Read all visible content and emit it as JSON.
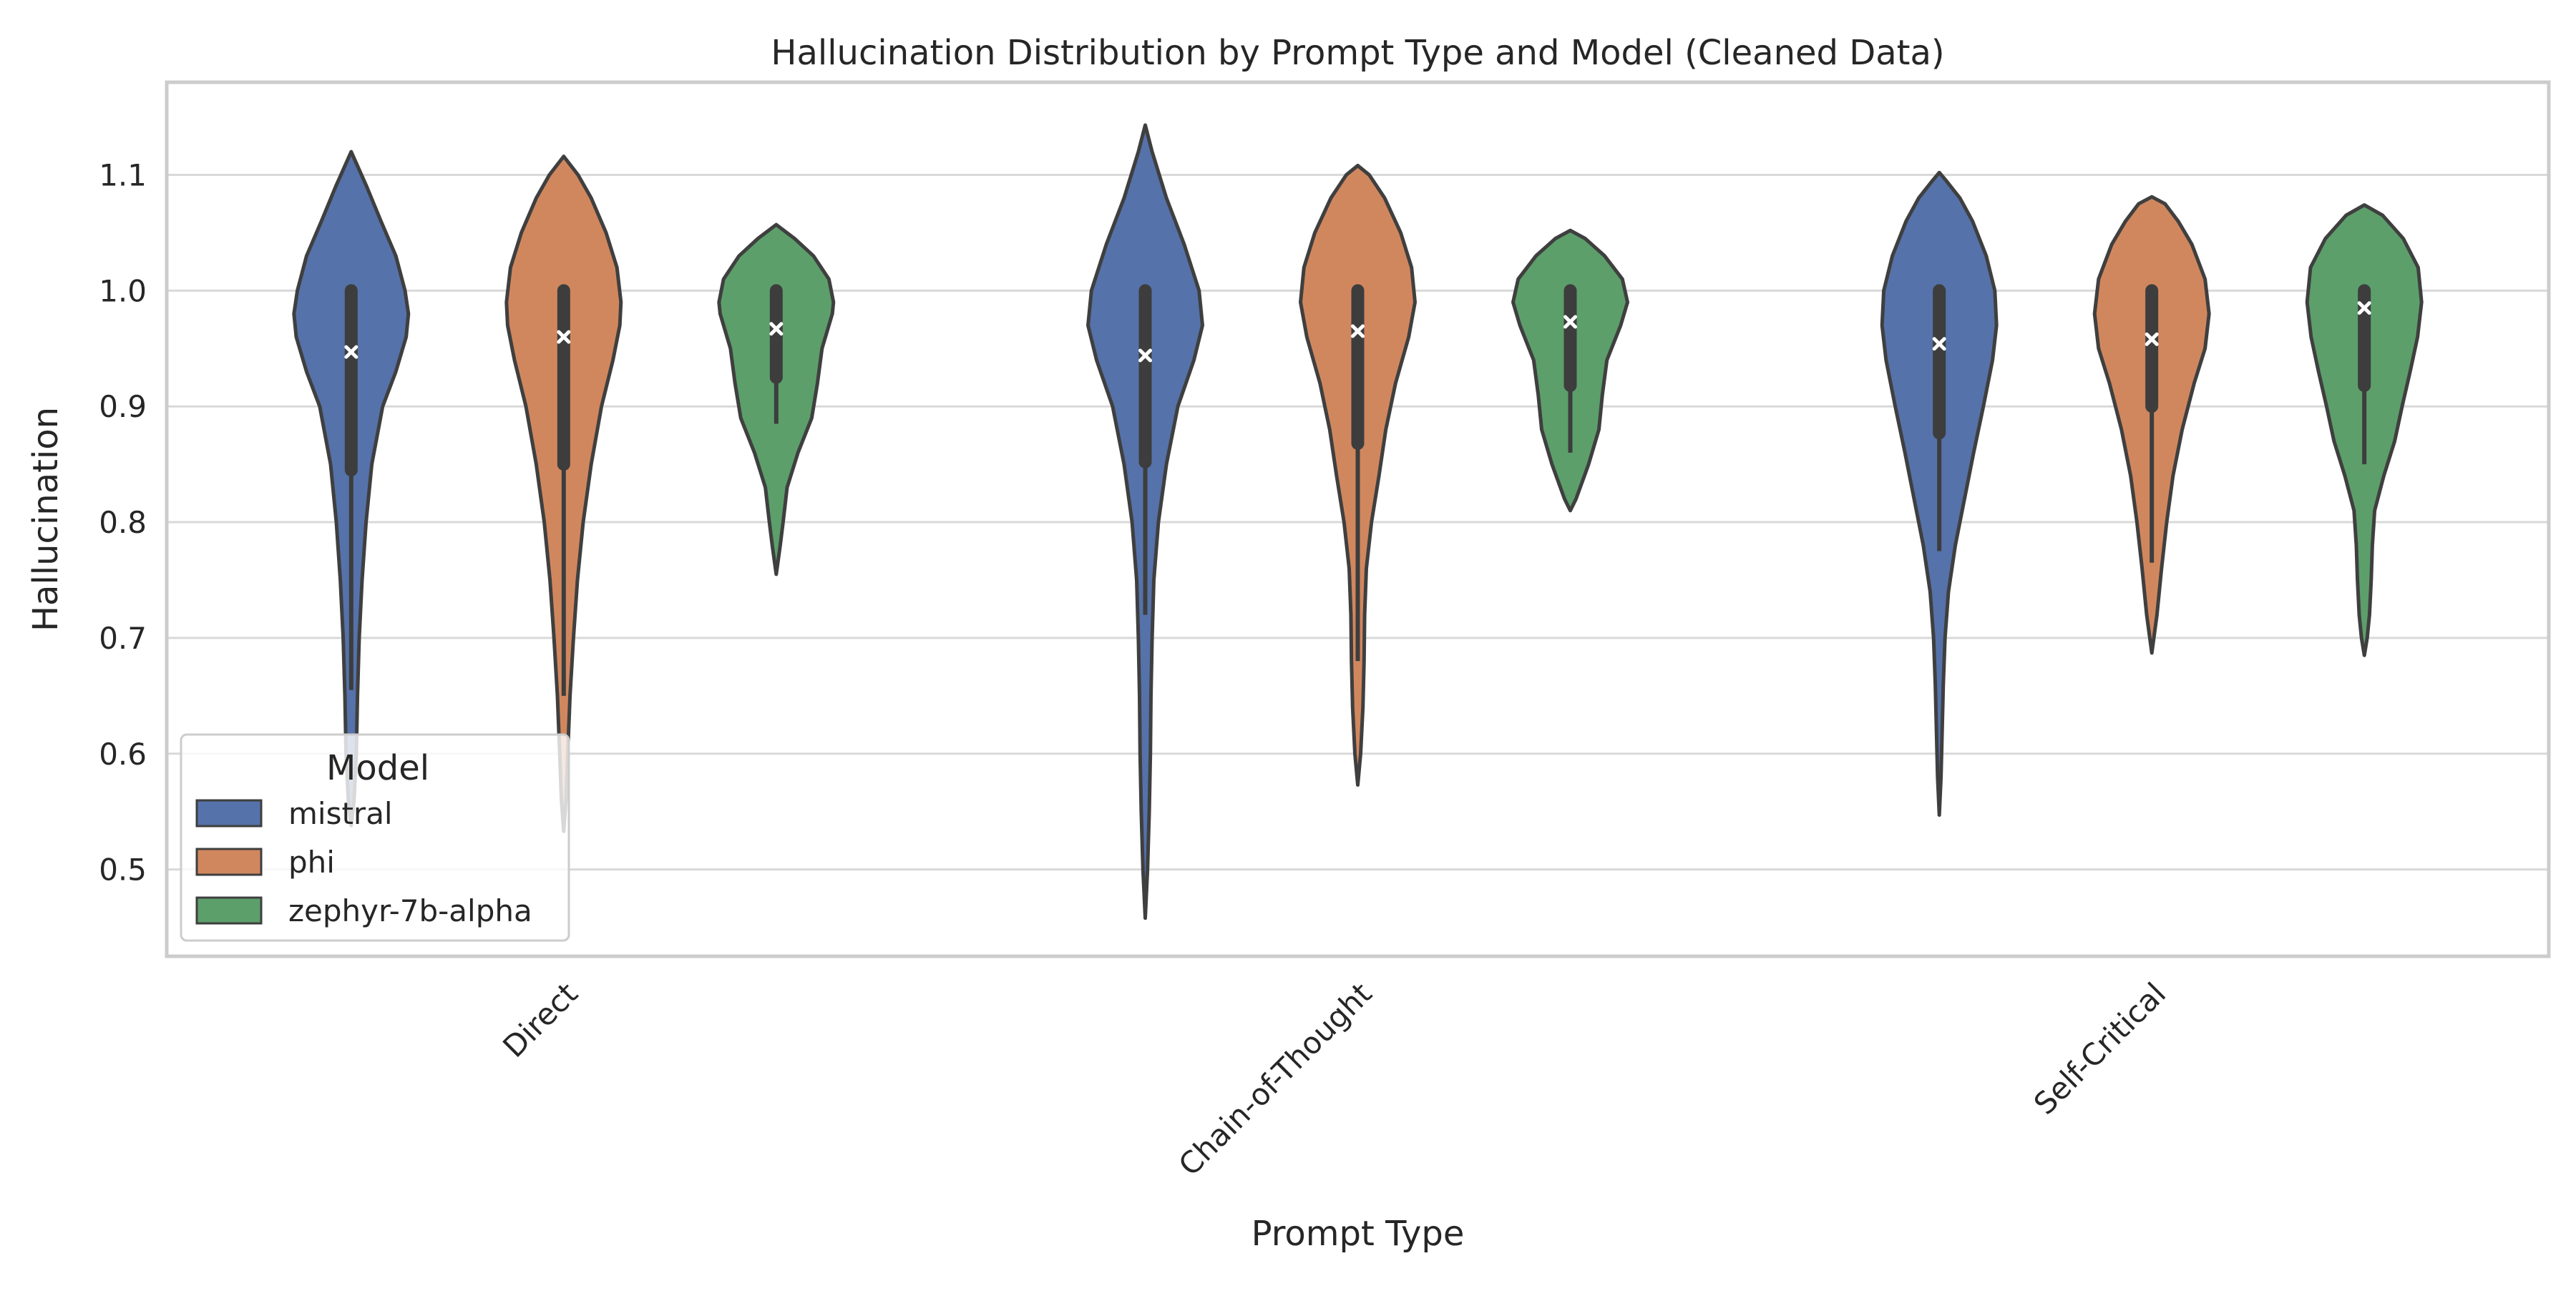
{
  "chart_data": {
    "type": "violin",
    "title": "Hallucination Distribution by Prompt Type and Model (Cleaned Data)",
    "xlabel": "Prompt Type",
    "ylabel": "Hallucination",
    "categories": [
      "Direct",
      "Chain-of-Thought",
      "Self-Critical"
    ],
    "ylim": [
      0.425,
      1.18
    ],
    "yticks": [
      0.5,
      0.6,
      0.7,
      0.8,
      0.9,
      1.0,
      1.1
    ],
    "ytick_labels": [
      "0.5",
      "0.6",
      "0.7",
      "0.8",
      "0.9",
      "1.0",
      "1.1"
    ],
    "grid": "horizontal",
    "legend": {
      "title": "Model",
      "placement": "lower-left",
      "entries": [
        "mistral",
        "phi",
        "zephyr-7b-alpha"
      ]
    },
    "colors": {
      "mistral": "#5572aa",
      "phi": "#d1875e",
      "zephyr-7b-alpha": "#5c9f6b",
      "outline": "#3f3f3f",
      "box": "#3d3d3d",
      "median_marker": "#ffffff",
      "grid": "#d9d9d9",
      "frame": "#cccccc"
    },
    "series": [
      {
        "name": "mistral",
        "violins": [
          {
            "category": "Direct",
            "ymin": 0.538,
            "ymax": 1.12,
            "median": 0.947,
            "q1": 0.845,
            "q3": 1.0,
            "whisker_low": 0.655,
            "whisker_high": 1.0,
            "profile": [
              [
                0.538,
                0.0
              ],
              [
                0.56,
                0.05
              ],
              [
                0.6,
                0.09
              ],
              [
                0.65,
                0.11
              ],
              [
                0.7,
                0.14
              ],
              [
                0.75,
                0.19
              ],
              [
                0.8,
                0.26
              ],
              [
                0.85,
                0.36
              ],
              [
                0.9,
                0.55
              ],
              [
                0.93,
                0.78
              ],
              [
                0.96,
                0.96
              ],
              [
                0.98,
                1.0
              ],
              [
                1.0,
                0.94
              ],
              [
                1.03,
                0.78
              ],
              [
                1.06,
                0.52
              ],
              [
                1.09,
                0.27
              ],
              [
                1.11,
                0.09
              ],
              [
                1.12,
                0.0
              ]
            ]
          },
          {
            "category": "Chain-of-Thought",
            "ymin": 0.458,
            "ymax": 1.143,
            "median": 0.944,
            "q1": 0.852,
            "q3": 1.0,
            "whisker_low": 0.72,
            "whisker_high": 1.0,
            "profile": [
              [
                0.458,
                0.0
              ],
              [
                0.5,
                0.04
              ],
              [
                0.55,
                0.07
              ],
              [
                0.6,
                0.09
              ],
              [
                0.65,
                0.1
              ],
              [
                0.7,
                0.12
              ],
              [
                0.75,
                0.15
              ],
              [
                0.8,
                0.23
              ],
              [
                0.85,
                0.37
              ],
              [
                0.9,
                0.57
              ],
              [
                0.94,
                0.85
              ],
              [
                0.97,
                1.0
              ],
              [
                1.0,
                0.94
              ],
              [
                1.04,
                0.68
              ],
              [
                1.08,
                0.37
              ],
              [
                1.12,
                0.12
              ],
              [
                1.143,
                0.0
              ]
            ]
          },
          {
            "category": "Self-Critical",
            "ymin": 0.547,
            "ymax": 1.102,
            "median": 0.954,
            "q1": 0.877,
            "q3": 1.0,
            "whisker_low": 0.775,
            "whisker_high": 1.0,
            "profile": [
              [
                0.547,
                0.0
              ],
              [
                0.58,
                0.03
              ],
              [
                0.62,
                0.05
              ],
              [
                0.66,
                0.07
              ],
              [
                0.7,
                0.1
              ],
              [
                0.74,
                0.16
              ],
              [
                0.78,
                0.28
              ],
              [
                0.82,
                0.44
              ],
              [
                0.86,
                0.6
              ],
              [
                0.9,
                0.77
              ],
              [
                0.94,
                0.93
              ],
              [
                0.97,
                1.0
              ],
              [
                1.0,
                0.97
              ],
              [
                1.03,
                0.82
              ],
              [
                1.06,
                0.58
              ],
              [
                1.08,
                0.36
              ],
              [
                1.095,
                0.12
              ],
              [
                1.102,
                0.0
              ]
            ]
          }
        ]
      },
      {
        "name": "phi",
        "violins": [
          {
            "category": "Direct",
            "ymin": 0.533,
            "ymax": 1.116,
            "median": 0.96,
            "q1": 0.85,
            "q3": 1.0,
            "whisker_low": 0.65,
            "whisker_high": 1.0,
            "profile": [
              [
                0.533,
                0.0
              ],
              [
                0.56,
                0.04
              ],
              [
                0.6,
                0.07
              ],
              [
                0.65,
                0.11
              ],
              [
                0.7,
                0.17
              ],
              [
                0.75,
                0.24
              ],
              [
                0.8,
                0.34
              ],
              [
                0.85,
                0.48
              ],
              [
                0.9,
                0.66
              ],
              [
                0.94,
                0.86
              ],
              [
                0.97,
                0.98
              ],
              [
                0.99,
                1.0
              ],
              [
                1.02,
                0.93
              ],
              [
                1.05,
                0.74
              ],
              [
                1.08,
                0.48
              ],
              [
                1.1,
                0.25
              ],
              [
                1.116,
                0.0
              ]
            ]
          },
          {
            "category": "Chain-of-Thought",
            "ymin": 0.573,
            "ymax": 1.108,
            "median": 0.965,
            "q1": 0.868,
            "q3": 1.0,
            "whisker_low": 0.68,
            "whisker_high": 1.0,
            "profile": [
              [
                0.573,
                0.0
              ],
              [
                0.6,
                0.05
              ],
              [
                0.64,
                0.09
              ],
              [
                0.68,
                0.11
              ],
              [
                0.72,
                0.12
              ],
              [
                0.76,
                0.15
              ],
              [
                0.8,
                0.24
              ],
              [
                0.84,
                0.37
              ],
              [
                0.88,
                0.49
              ],
              [
                0.92,
                0.66
              ],
              [
                0.96,
                0.89
              ],
              [
                0.99,
                1.0
              ],
              [
                1.02,
                0.94
              ],
              [
                1.05,
                0.75
              ],
              [
                1.08,
                0.47
              ],
              [
                1.1,
                0.2
              ],
              [
                1.108,
                0.0
              ]
            ]
          },
          {
            "category": "Self-Critical",
            "ymin": 0.687,
            "ymax": 1.081,
            "median": 0.958,
            "q1": 0.9,
            "q3": 1.0,
            "whisker_low": 0.765,
            "whisker_high": 1.0,
            "profile": [
              [
                0.687,
                0.0
              ],
              [
                0.72,
                0.09
              ],
              [
                0.76,
                0.17
              ],
              [
                0.8,
                0.26
              ],
              [
                0.84,
                0.37
              ],
              [
                0.88,
                0.53
              ],
              [
                0.92,
                0.74
              ],
              [
                0.95,
                0.93
              ],
              [
                0.98,
                1.0
              ],
              [
                1.01,
                0.93
              ],
              [
                1.04,
                0.7
              ],
              [
                1.06,
                0.46
              ],
              [
                1.075,
                0.23
              ],
              [
                1.081,
                0.0
              ]
            ]
          }
        ]
      },
      {
        "name": "zephyr-7b-alpha",
        "violins": [
          {
            "category": "Direct",
            "ymin": 0.755,
            "ymax": 1.057,
            "median": 0.967,
            "q1": 0.925,
            "q3": 1.0,
            "whisker_low": 0.885,
            "whisker_high": 1.0,
            "profile": [
              [
                0.755,
                0.0
              ],
              [
                0.78,
                0.07
              ],
              [
                0.8,
                0.12
              ],
              [
                0.83,
                0.19
              ],
              [
                0.86,
                0.38
              ],
              [
                0.89,
                0.62
              ],
              [
                0.92,
                0.72
              ],
              [
                0.95,
                0.8
              ],
              [
                0.98,
                0.98
              ],
              [
                0.99,
                1.0
              ],
              [
                1.01,
                0.92
              ],
              [
                1.03,
                0.65
              ],
              [
                1.045,
                0.32
              ],
              [
                1.057,
                0.0
              ]
            ]
          },
          {
            "category": "Chain-of-Thought",
            "ymin": 0.81,
            "ymax": 1.052,
            "median": 0.973,
            "q1": 0.918,
            "q3": 1.0,
            "whisker_low": 0.86,
            "whisker_high": 1.0,
            "profile": [
              [
                0.81,
                0.0
              ],
              [
                0.82,
                0.1
              ],
              [
                0.85,
                0.32
              ],
              [
                0.88,
                0.5
              ],
              [
                0.91,
                0.56
              ],
              [
                0.94,
                0.64
              ],
              [
                0.97,
                0.88
              ],
              [
                0.99,
                1.0
              ],
              [
                1.01,
                0.91
              ],
              [
                1.03,
                0.6
              ],
              [
                1.045,
                0.26
              ],
              [
                1.052,
                0.0
              ]
            ]
          },
          {
            "category": "Self-Critical",
            "ymin": 0.685,
            "ymax": 1.074,
            "median": 0.985,
            "q1": 0.918,
            "q3": 1.0,
            "whisker_low": 0.85,
            "whisker_high": 1.0,
            "profile": [
              [
                0.685,
                0.0
              ],
              [
                0.7,
                0.05
              ],
              [
                0.72,
                0.09
              ],
              [
                0.75,
                0.12
              ],
              [
                0.78,
                0.14
              ],
              [
                0.81,
                0.18
              ],
              [
                0.84,
                0.34
              ],
              [
                0.87,
                0.53
              ],
              [
                0.9,
                0.66
              ],
              [
                0.93,
                0.8
              ],
              [
                0.96,
                0.93
              ],
              [
                0.99,
                1.0
              ],
              [
                1.02,
                0.94
              ],
              [
                1.045,
                0.68
              ],
              [
                1.065,
                0.32
              ],
              [
                1.074,
                0.0
              ]
            ]
          }
        ]
      }
    ]
  }
}
